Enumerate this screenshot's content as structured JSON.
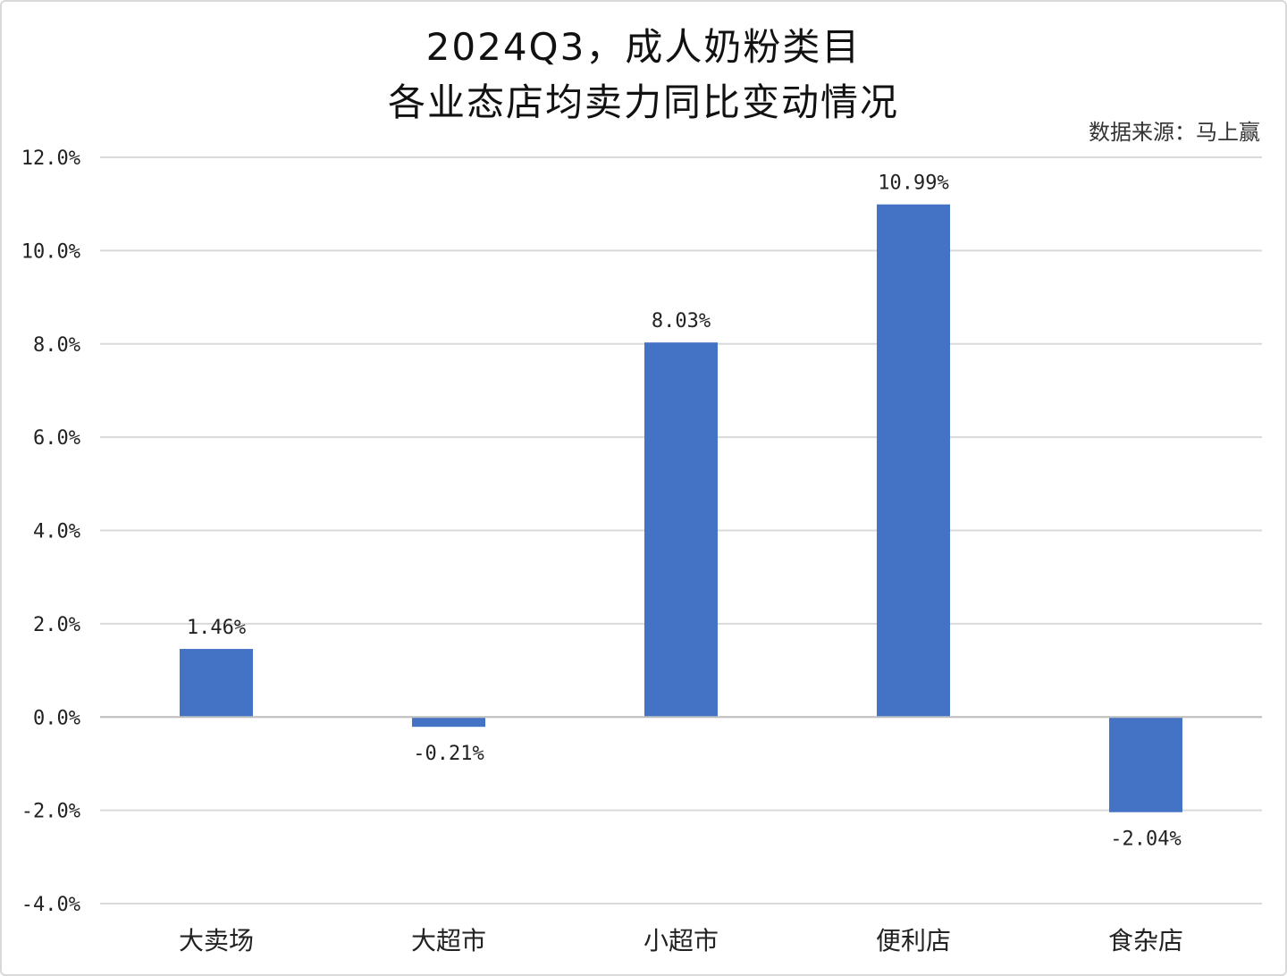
{
  "chart_data": {
    "type": "bar",
    "title_line1": "2024Q3，成人奶粉类目",
    "title_line2": "各业态店均卖力同比变动情况",
    "source": "数据来源：马上赢",
    "categories": [
      "大卖场",
      "大超市",
      "小超市",
      "便利店",
      "食杂店"
    ],
    "values": [
      1.46,
      -0.21,
      8.03,
      10.99,
      -2.04
    ],
    "data_labels": [
      "1.46%",
      "-0.21%",
      "8.03%",
      "10.99%",
      "-2.04%"
    ],
    "yticks": [
      "12.0%",
      "10.0%",
      "8.0%",
      "6.0%",
      "4.0%",
      "2.0%",
      "0.0%",
      "-2.0%",
      "-4.0%"
    ],
    "ylim": [
      -4,
      12
    ],
    "grid": true,
    "bar_color": "#4472c4"
  }
}
